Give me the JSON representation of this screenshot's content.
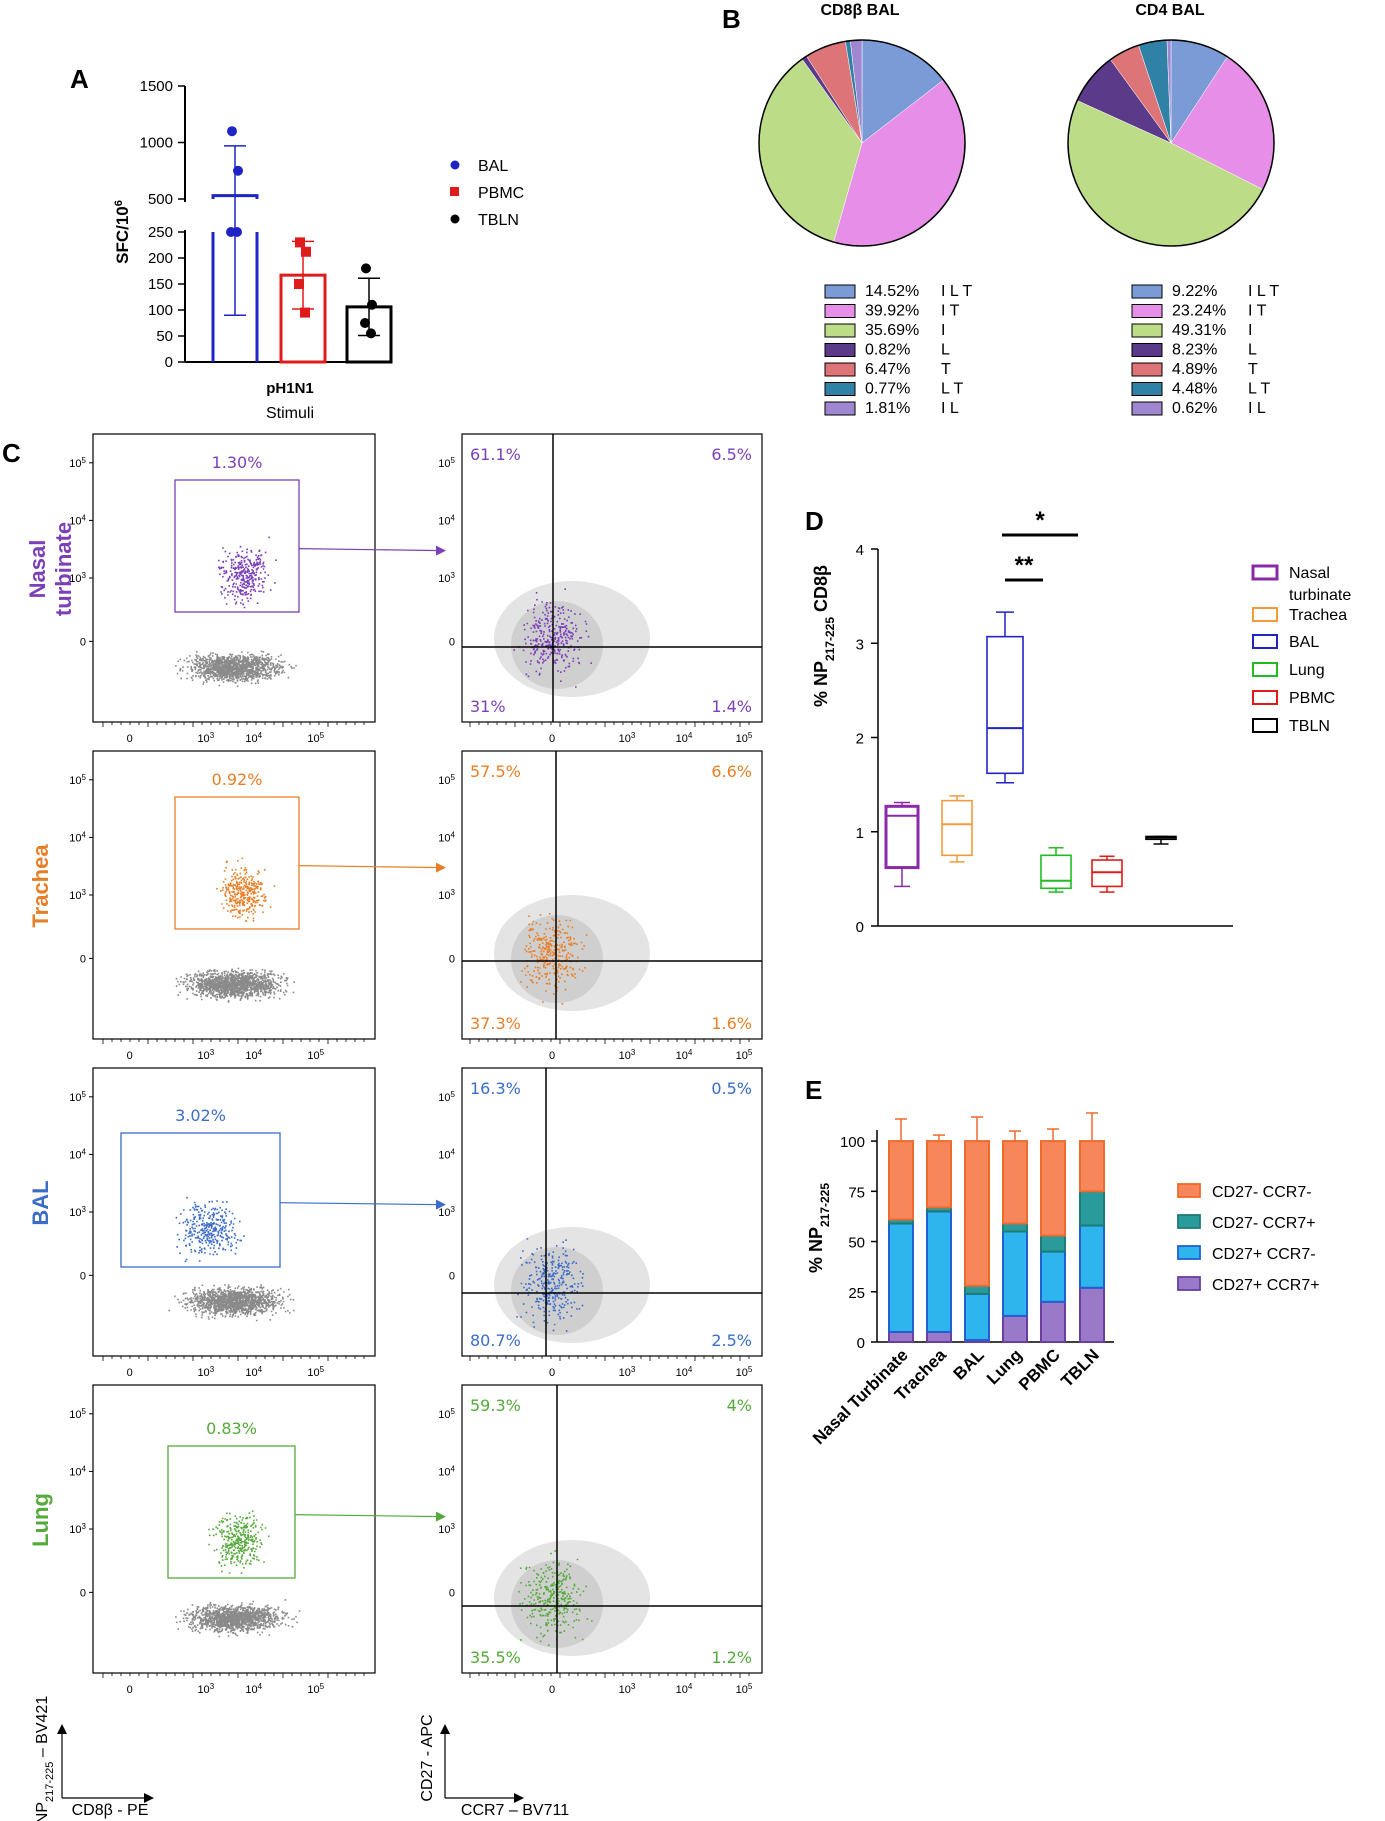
{
  "panels": {
    "A": "A",
    "B": "B",
    "C": "C",
    "D": "D",
    "E": "E"
  },
  "colors": {
    "bal": "#1f25c4",
    "pbmc": "#e01b1b",
    "tbln": "#000000",
    "nasal": "#8a2aa8",
    "trachea": "#f39a3c",
    "lung": "#22bb22",
    "flow_nasal": "#7b3fb8",
    "flow_trachea": "#e87f27",
    "flow_bal": "#3a6cc8",
    "flow_lung": "#55aa3c",
    "pie_ILT": "#7b9bd6",
    "pie_IT": "#e78ee8",
    "pie_I": "#bcdc88",
    "pie_L": "#5c3a8a",
    "pie_T": "#dc7478",
    "pie_LT": "#2f82a6",
    "pie_IL": "#9e86d0",
    "e_cd27n_ccr7n": "#f7875a",
    "e_cd27n_ccr7p": "#2a9b9b",
    "e_cd27p_ccr7n": "#2fb5ee",
    "e_cd27p_ccr7p": "#9b79c9"
  },
  "chart_data": [
    {
      "id": "A",
      "type": "bar",
      "ylabel": "SFC/10",
      "ylabel_sup": "6",
      "xlabel": "Stimuli",
      "category": "pH1N1",
      "yticks_upper": [
        "1500",
        "1000",
        "500"
      ],
      "yticks_lower": [
        "250",
        "200",
        "150",
        "100",
        "50",
        "0"
      ],
      "series": [
        {
          "name": "BAL",
          "mean": 530,
          "sd": 440,
          "points": [
            1100,
            750,
            400,
            250
          ]
        },
        {
          "name": "PBMC",
          "mean": 167,
          "sd": 65,
          "points": [
            230,
            212,
            150,
            95
          ]
        },
        {
          "name": "TBLN",
          "mean": 106,
          "sd": 55,
          "points": [
            180,
            110,
            75,
            55
          ]
        }
      ]
    },
    {
      "id": "B_CD8",
      "type": "pie",
      "title": "CD8β BAL",
      "slices": [
        {
          "pct": "14.52%",
          "label": "I L T",
          "value": 14.52,
          "key": "pie_ILT"
        },
        {
          "pct": "39.92%",
          "label": "I T",
          "value": 39.92,
          "key": "pie_IT"
        },
        {
          "pct": "35.69%",
          "label": "I",
          "value": 35.69,
          "key": "pie_I"
        },
        {
          "pct": "0.82%",
          "label": "L",
          "value": 0.82,
          "key": "pie_L"
        },
        {
          "pct": "6.47%",
          "label": "T",
          "value": 6.47,
          "key": "pie_T"
        },
        {
          "pct": "0.77%",
          "label": "L T",
          "value": 0.77,
          "key": "pie_LT"
        },
        {
          "pct": "1.81%",
          "label": "I L",
          "value": 1.81,
          "key": "pie_IL"
        }
      ]
    },
    {
      "id": "B_CD4",
      "type": "pie",
      "title": "CD4 BAL",
      "slices": [
        {
          "pct": "9.22%",
          "label": "I L T",
          "value": 9.22,
          "key": "pie_ILT"
        },
        {
          "pct": "23.24%",
          "label": "I T",
          "value": 23.24,
          "key": "pie_IT"
        },
        {
          "pct": "49.31%",
          "label": "I",
          "value": 49.31,
          "key": "pie_I"
        },
        {
          "pct": "8.23%",
          "label": "L",
          "value": 8.23,
          "key": "pie_L"
        },
        {
          "pct": "4.89%",
          "label": "T",
          "value": 4.89,
          "key": "pie_T"
        },
        {
          "pct": "4.48%",
          "label": "L T",
          "value": 4.48,
          "key": "pie_LT"
        },
        {
          "pct": "0.62%",
          "label": "I L",
          "value": 0.62,
          "key": "pie_IL"
        }
      ]
    },
    {
      "id": "D",
      "type": "box",
      "ylabel": "% NP",
      "ylabel_sub": "217-225",
      "ylabel_tail": " CD8β",
      "ylim": [
        0,
        4
      ],
      "yticks": [
        "0",
        "1",
        "2",
        "3",
        "4"
      ],
      "significance": [
        {
          "label": "**",
          "from": "BAL",
          "to": "Lung"
        },
        {
          "label": "*",
          "from": "BAL",
          "to": "PBMC"
        }
      ],
      "boxes": [
        {
          "name": "Nasal turbinate",
          "min": 0.42,
          "q1": 0.62,
          "median": 1.17,
          "q3": 1.27,
          "max": 1.31,
          "key": "nasal"
        },
        {
          "name": "Trachea",
          "min": 0.68,
          "q1": 0.75,
          "median": 1.08,
          "q3": 1.33,
          "max": 1.38,
          "key": "trachea"
        },
        {
          "name": "BAL",
          "min": 1.52,
          "q1": 1.62,
          "median": 2.1,
          "q3": 3.07,
          "max": 3.33,
          "key": "bal"
        },
        {
          "name": "Lung",
          "min": 0.36,
          "q1": 0.4,
          "median": 0.48,
          "q3": 0.75,
          "max": 0.83,
          "key": "lung"
        },
        {
          "name": "PBMC",
          "min": 0.36,
          "q1": 0.42,
          "median": 0.57,
          "q3": 0.7,
          "max": 0.74,
          "key": "pbmc"
        },
        {
          "name": "TBLN",
          "min": 0.87,
          "q1": 0.92,
          "median": 0.94,
          "q3": 0.95,
          "max": 0.95,
          "key": "tbln"
        }
      ]
    },
    {
      "id": "E",
      "type": "stacked-bar",
      "ylabel": "% NP",
      "ylabel_sub": "217-225",
      "ylim": [
        0,
        110
      ],
      "yticks": [
        "0",
        "25",
        "50",
        "75",
        "100"
      ],
      "categories": [
        "Nasal Turbinate",
        "Trachea",
        "BAL",
        "Lung",
        "PBMC",
        "TBLN"
      ],
      "series": [
        {
          "name": "CD27+ CCR7+",
          "key": "e_cd27p_ccr7p",
          "values": [
            5,
            5,
            1,
            13,
            20,
            27
          ],
          "err": [
            4,
            2,
            1,
            8,
            10,
            14
          ]
        },
        {
          "name": "CD27+ CCR7-",
          "key": "e_cd27p_ccr7n",
          "values": [
            54,
            60,
            23,
            42,
            25,
            31
          ],
          "err": [
            6,
            2,
            8,
            6,
            4,
            10
          ]
        },
        {
          "name": "CD27- CCR7+",
          "key": "e_cd27n_ccr7p",
          "values": [
            2,
            2,
            4,
            4,
            8,
            17
          ],
          "err": [
            2,
            1,
            4,
            3,
            3,
            5
          ]
        },
        {
          "name": "CD27- CCR7-",
          "key": "e_cd27n_ccr7n",
          "values": [
            39,
            33,
            72,
            41,
            47,
            25
          ],
          "err": [
            11,
            3,
            12,
            5,
            6,
            14
          ]
        }
      ],
      "legend": [
        "CD27- CCR7-",
        "CD27- CCR7+",
        "CD27+ CCR7-",
        "CD27+ CCR7+"
      ]
    }
  ],
  "flow": {
    "left_axis_y": "NP",
    "left_axis_y_sub": "217-225",
    "left_axis_y_tail": " – BV421",
    "left_axis_x": "CD8β - PE",
    "right_axis_y": "CD27 - APC",
    "right_axis_x": "CCR7 – BV711",
    "ticks_y": [
      "10",
      "10",
      "10",
      "0"
    ],
    "ticks_y_sup": [
      "5",
      "4",
      "3",
      ""
    ],
    "ticks_x": [
      "0",
      "10",
      "10",
      "10"
    ],
    "ticks_x_sup": [
      "",
      "3",
      "4",
      "5"
    ],
    "ticks_x_right": [
      "0",
      "10",
      "10",
      "10"
    ],
    "rows": [
      {
        "tissue": "Nasal turbinate",
        "tissue_lines": [
          "Nasal",
          "turbinate"
        ],
        "key": "flow_nasal",
        "gate_pct": "1.30%",
        "q_ul": "61.1%",
        "q_ur": "6.5%",
        "q_ll": "31%",
        "q_lr": "1.4%"
      },
      {
        "tissue": "Trachea",
        "tissue_lines": [
          "Trachea"
        ],
        "key": "flow_trachea",
        "gate_pct": "0.92%",
        "q_ul": "57.5%",
        "q_ur": "6.6%",
        "q_ll": "37.3%",
        "q_lr": "1.6%"
      },
      {
        "tissue": "BAL",
        "tissue_lines": [
          "BAL"
        ],
        "key": "flow_bal",
        "gate_pct": "3.02%",
        "q_ul": "16.3%",
        "q_ur": "0.5%",
        "q_ll": "80.7%",
        "q_lr": "2.5%"
      },
      {
        "tissue": "Lung",
        "tissue_lines": [
          "Lung"
        ],
        "key": "flow_lung",
        "gate_pct": "0.83%",
        "q_ul": "59.3%",
        "q_ur": "4%",
        "q_ll": "35.5%",
        "q_lr": "1.2%"
      }
    ]
  }
}
